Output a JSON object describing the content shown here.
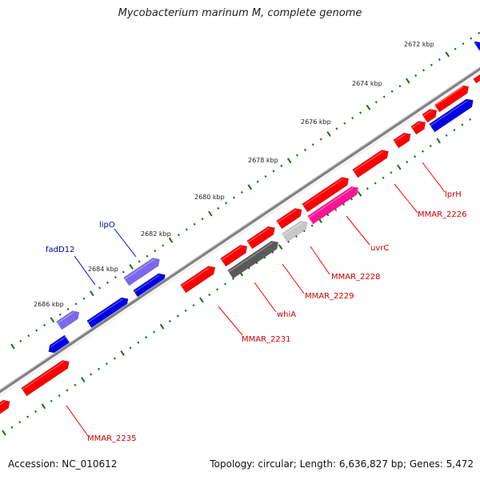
{
  "title": "Mycobacterium marinum M, complete genome",
  "footer": {
    "accession": "Accession: NC_010612",
    "summary": "Topology: circular; Length: 6,636,827 bp; Genes: 5,472"
  },
  "colors": {
    "backbone": "#7f7f7f",
    "ticks": "#1a6e1a",
    "red_feature": "#ff0000",
    "blue_feature": "#0000e6",
    "purple_feature": "#7b68ee",
    "dark_gray_feature": "#5a5a5a",
    "light_gray_feature": "#c8c8c8",
    "pink_feature": "#ff1493",
    "red_label": "#cc0000",
    "blue_label": "#0000aa"
  },
  "scale_labels": [
    "2672 kbp",
    "2674 kbp",
    "2676 kbp",
    "2678 kbp",
    "2680 kbp",
    "2682 kbp",
    "2684 kbp",
    "2686 kbp"
  ],
  "gene_labels": [
    {
      "name": "lprH",
      "color": "red"
    },
    {
      "name": "MMAR_2226",
      "color": "red"
    },
    {
      "name": "uvrC",
      "color": "red"
    },
    {
      "name": "MMAR_2228",
      "color": "red"
    },
    {
      "name": "MMAR_2229",
      "color": "red"
    },
    {
      "name": "whiA",
      "color": "red"
    },
    {
      "name": "MMAR_2231",
      "color": "red"
    },
    {
      "name": "MMAR_2235",
      "color": "red"
    },
    {
      "name": "lipO",
      "color": "blue"
    },
    {
      "name": "fadD12",
      "color": "blue"
    }
  ]
}
